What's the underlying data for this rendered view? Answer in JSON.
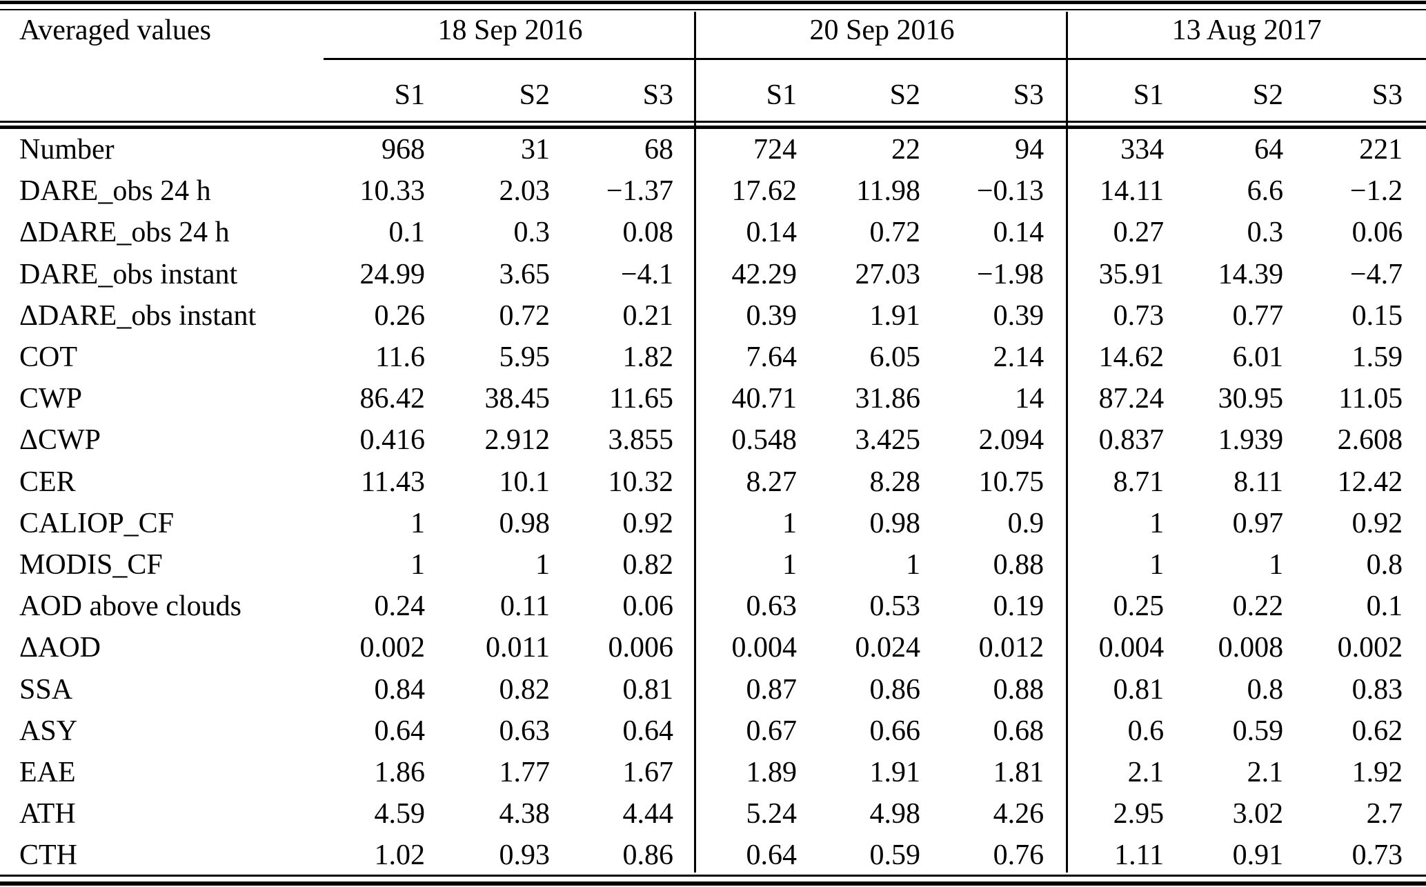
{
  "colors": {
    "text": "#000000",
    "background": "#ffffff",
    "rule": "#000000"
  },
  "table": {
    "corner_label": "Averaged values",
    "groups": [
      {
        "label": "18 Sep 2016",
        "subcolumns": [
          "S1",
          "S2",
          "S3"
        ]
      },
      {
        "label": "20 Sep 2016",
        "subcolumns": [
          "S1",
          "S2",
          "S3"
        ]
      },
      {
        "label": "13 Aug 2017",
        "subcolumns": [
          "S1",
          "S2",
          "S3"
        ]
      }
    ],
    "rows": [
      {
        "label": "Number",
        "values": [
          "968",
          "31",
          "68",
          "724",
          "22",
          "94",
          "334",
          "64",
          "221"
        ]
      },
      {
        "label": "DARE_obs 24 h",
        "values": [
          "10.33",
          "2.03",
          "−1.37",
          "17.62",
          "11.98",
          "−0.13",
          "14.11",
          "6.6",
          "−1.2"
        ]
      },
      {
        "label": "ΔDARE_obs 24 h",
        "values": [
          "0.1",
          "0.3",
          "0.08",
          "0.14",
          "0.72",
          "0.14",
          "0.27",
          "0.3",
          "0.06"
        ]
      },
      {
        "label": "DARE_obs instant",
        "values": [
          "24.99",
          "3.65",
          "−4.1",
          "42.29",
          "27.03",
          "−1.98",
          "35.91",
          "14.39",
          "−4.7"
        ]
      },
      {
        "label": "ΔDARE_obs instant",
        "values": [
          "0.26",
          "0.72",
          "0.21",
          "0.39",
          "1.91",
          "0.39",
          "0.73",
          "0.77",
          "0.15"
        ]
      },
      {
        "label": "COT",
        "values": [
          "11.6",
          "5.95",
          "1.82",
          "7.64",
          "6.05",
          "2.14",
          "14.62",
          "6.01",
          "1.59"
        ]
      },
      {
        "label": "CWP",
        "values": [
          "86.42",
          "38.45",
          "11.65",
          "40.71",
          "31.86",
          "14",
          "87.24",
          "30.95",
          "11.05"
        ]
      },
      {
        "label": "ΔCWP",
        "values": [
          "0.416",
          "2.912",
          "3.855",
          "0.548",
          "3.425",
          "2.094",
          "0.837",
          "1.939",
          "2.608"
        ]
      },
      {
        "label": "CER",
        "values": [
          "11.43",
          "10.1",
          "10.32",
          "8.27",
          "8.28",
          "10.75",
          "8.71",
          "8.11",
          "12.42"
        ]
      },
      {
        "label": "CALIOP_CF",
        "values": [
          "1",
          "0.98",
          "0.92",
          "1",
          "0.98",
          "0.9",
          "1",
          "0.97",
          "0.92"
        ]
      },
      {
        "label": "MODIS_CF",
        "values": [
          "1",
          "1",
          "0.82",
          "1",
          "1",
          "0.88",
          "1",
          "1",
          "0.8"
        ]
      },
      {
        "label": "AOD above clouds",
        "values": [
          "0.24",
          "0.11",
          "0.06",
          "0.63",
          "0.53",
          "0.19",
          "0.25",
          "0.22",
          "0.1"
        ]
      },
      {
        "label": "ΔAOD",
        "values": [
          "0.002",
          "0.011",
          "0.006",
          "0.004",
          "0.024",
          "0.012",
          "0.004",
          "0.008",
          "0.002"
        ]
      },
      {
        "label": "SSA",
        "values": [
          "0.84",
          "0.82",
          "0.81",
          "0.87",
          "0.86",
          "0.88",
          "0.81",
          "0.8",
          "0.83"
        ]
      },
      {
        "label": "ASY",
        "values": [
          "0.64",
          "0.63",
          "0.64",
          "0.67",
          "0.66",
          "0.68",
          "0.6",
          "0.59",
          "0.62"
        ]
      },
      {
        "label": "EAE",
        "values": [
          "1.86",
          "1.77",
          "1.67",
          "1.89",
          "1.91",
          "1.81",
          "2.1",
          "2.1",
          "1.92"
        ]
      },
      {
        "label": "ATH",
        "values": [
          "4.59",
          "4.38",
          "4.44",
          "5.24",
          "4.98",
          "4.26",
          "2.95",
          "3.02",
          "2.7"
        ]
      },
      {
        "label": "CTH",
        "values": [
          "1.02",
          "0.93",
          "0.86",
          "0.64",
          "0.59",
          "0.76",
          "1.11",
          "0.91",
          "0.73"
        ]
      }
    ]
  }
}
